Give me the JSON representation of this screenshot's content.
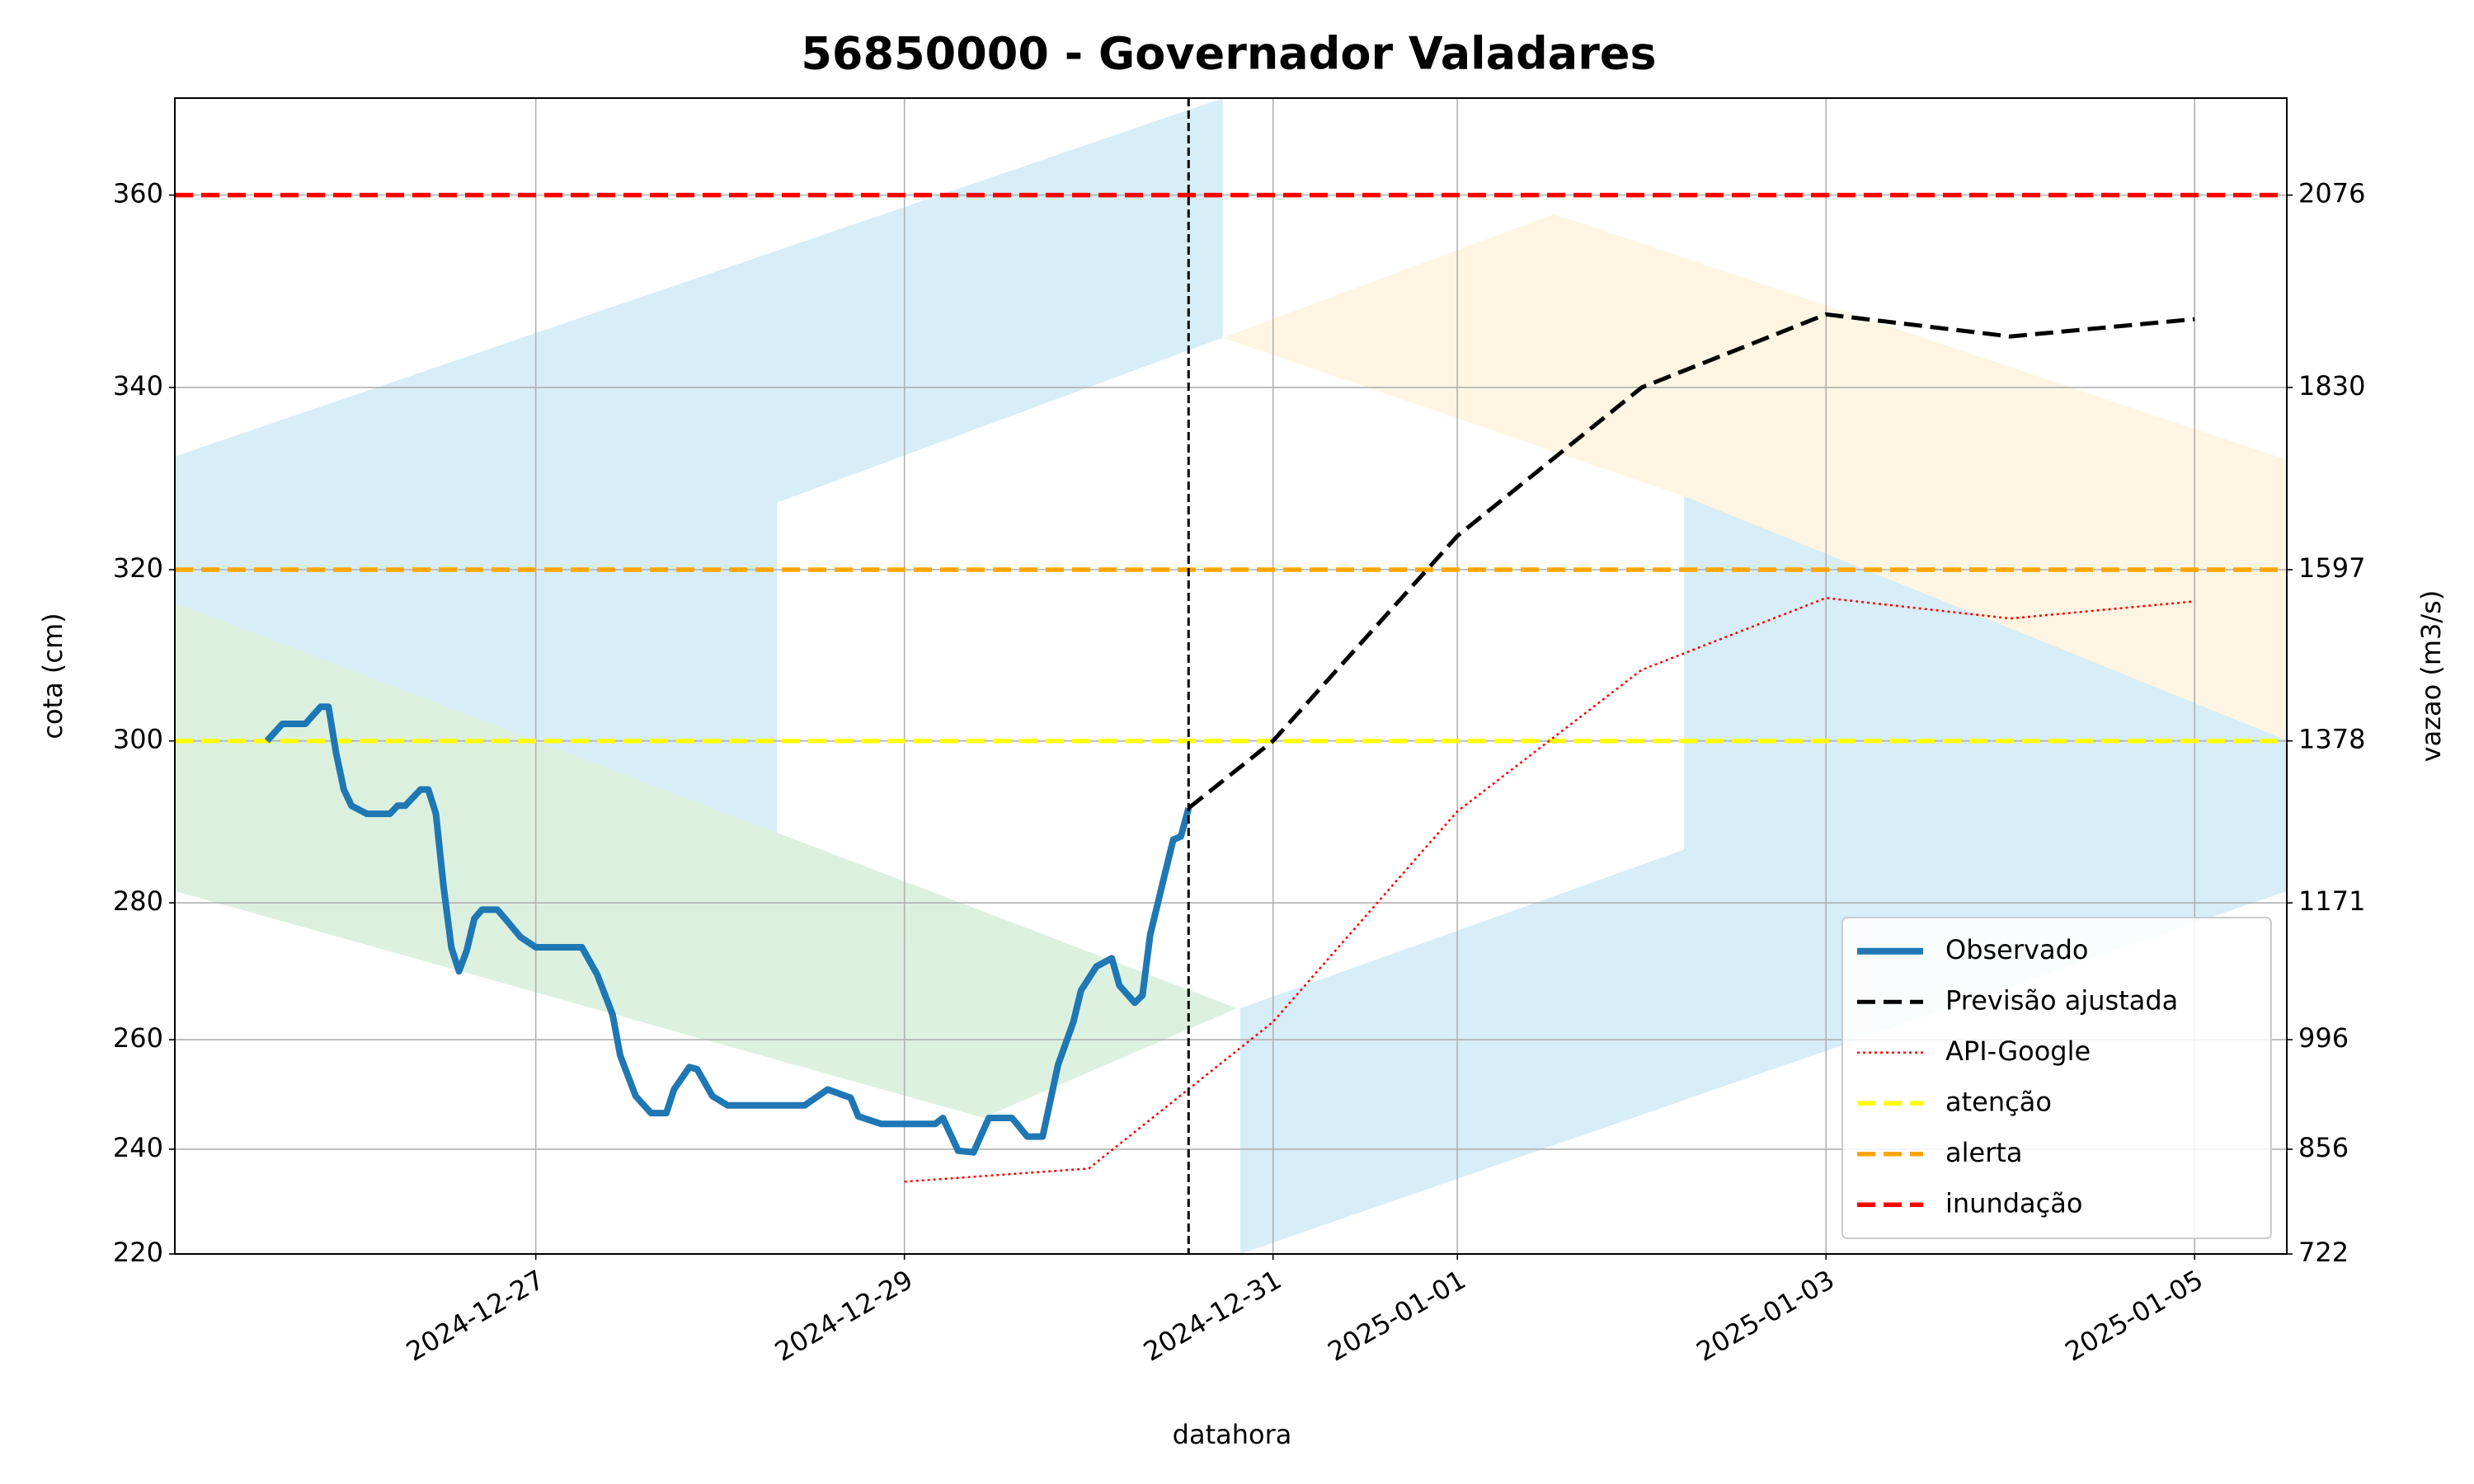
{
  "chart_data": {
    "type": "line",
    "title": "56850000 - Governador Valadares",
    "x_label": "datahora",
    "y_label": "cota (cm)",
    "y2_label": "vazao (m3/s)",
    "xlim": [
      "2024-12-25T01:00",
      "2025-01-05T12:00"
    ],
    "xticks": [
      "2024-12-27",
      "2024-12-29",
      "2024-12-31",
      "2025-01-01",
      "2025-01-03",
      "2025-01-05"
    ],
    "yticks": [
      220,
      240,
      260,
      280,
      300,
      320,
      340,
      360
    ],
    "y2lim": [
      722,
      2200
    ],
    "y2ticks": [
      722,
      856,
      996,
      1171,
      1378,
      1597,
      1830,
      2076
    ],
    "grid": true,
    "vline": "2024-12-30T13:00",
    "legend": "lower right",
    "series": [
      {
        "name": "Observado",
        "color": "#1f77b4",
        "style": "solid",
        "x": [
          "2024-12-25T13:00",
          "2024-12-25T14:00",
          "2024-12-25T15:00",
          "2024-12-25T18:00",
          "2024-12-25T20:00",
          "2024-12-25T21:00",
          "2024-12-25T22:00",
          "2024-12-25T23:00",
          "2024-12-26T00:00",
          "2024-12-26T02:00",
          "2024-12-26T05:00",
          "2024-12-26T06:00",
          "2024-12-26T07:00",
          "2024-12-26T09:00",
          "2024-12-26T10:00",
          "2024-12-26T11:00",
          "2024-12-26T12:00",
          "2024-12-26T13:00",
          "2024-12-26T14:00",
          "2024-12-26T15:00",
          "2024-12-26T16:00",
          "2024-12-26T17:00",
          "2024-12-26T19:00",
          "2024-12-26T20:00",
          "2024-12-26T22:00",
          "2024-12-27T00:00",
          "2024-12-27T06:00",
          "2024-12-27T08:00",
          "2024-12-27T10:00",
          "2024-12-27T11:00",
          "2024-12-27T13:00",
          "2024-12-27T15:00",
          "2024-12-27T17:00",
          "2024-12-27T18:00",
          "2024-12-27T20:00",
          "2024-12-27T21:00",
          "2024-12-27T23:00",
          "2024-12-28T01:00",
          "2024-12-28T03:00",
          "2024-12-28T09:00",
          "2024-12-28T11:00",
          "2024-12-28T14:00",
          "2024-12-28T17:00",
          "2024-12-28T18:00",
          "2024-12-28T21:00",
          "2024-12-29T04:00",
          "2024-12-29T05:00",
          "2024-12-29T07:00",
          "2024-12-29T09:00",
          "2024-12-29T11:00",
          "2024-12-29T14:00",
          "2024-12-29T16:00",
          "2024-12-29T18:00",
          "2024-12-29T20:00",
          "2024-12-29T22:00",
          "2024-12-29T23:00",
          "2024-12-30T01:00",
          "2024-12-30T03:00",
          "2024-12-30T04:00",
          "2024-12-30T06:00",
          "2024-12-30T07:00",
          "2024-12-30T08:00",
          "2024-12-30T10:00",
          "2024-12-30T11:00",
          "2024-12-30T12:00",
          "2024-12-30T13:00"
        ],
        "values": [
          300,
          301,
          302,
          302,
          304,
          304,
          298.5,
          294,
          292,
          291,
          291,
          292,
          292,
          294,
          294,
          291,
          282,
          273.5,
          270,
          273,
          277.7,
          279,
          279,
          277.7,
          275,
          273.5,
          273.5,
          269.5,
          263.7,
          257.1,
          249.7,
          246.6,
          246.6,
          250.9,
          255,
          254.6,
          249.7,
          248,
          248,
          248,
          248,
          250.9,
          249.4,
          246,
          244.6,
          244.6,
          245.7,
          239.7,
          239.4,
          245.7,
          245.7,
          242.3,
          242.3,
          255.4,
          262.6,
          267.2,
          270.7,
          271.9,
          267.9,
          265.4,
          266.5,
          275.3,
          283.9,
          287.8,
          288.2,
          291.7
        ]
      },
      {
        "name": "Previsão ajustada",
        "color": "#000000",
        "style": "dashed",
        "x": [
          "2024-12-30T13:00",
          "2024-12-31",
          "2025-01-01",
          "2025-01-02",
          "2025-01-03",
          "2025-01-04",
          "2025-01-05"
        ],
        "values": [
          291.7,
          300,
          323.7,
          340,
          347.6,
          345.3,
          347.1
        ]
      },
      {
        "name": "API-Google",
        "color": "#ff0000",
        "style": "dotted",
        "x": [
          "2024-12-29",
          "2024-12-30",
          "2024-12-31",
          "2025-01-01",
          "2025-01-02",
          "2025-01-03",
          "2025-01-04",
          "2025-01-05"
        ],
        "values": [
          233.8,
          236.3,
          262.6,
          291.3,
          308.3,
          316.7,
          314.3,
          316.3
        ]
      }
    ],
    "thresholds": [
      {
        "name": "atenção",
        "color": "#ffff00",
        "value": 300
      },
      {
        "name": "alerta",
        "color": "#ffa500",
        "value": 320
      },
      {
        "name": "inundação",
        "color": "#ff0000",
        "value": 360
      }
    ]
  }
}
